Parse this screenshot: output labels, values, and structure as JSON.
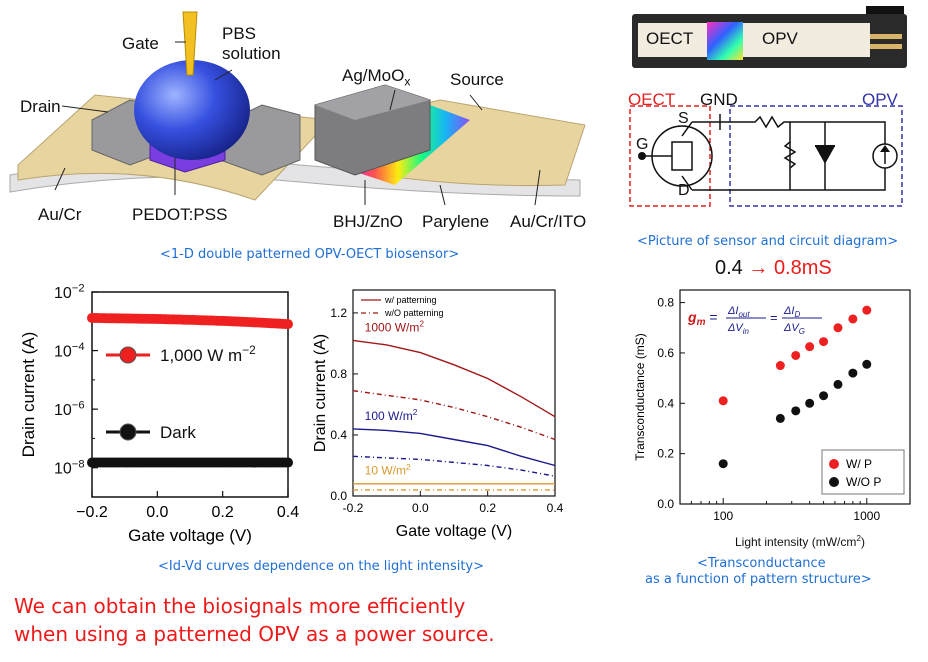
{
  "device": {
    "labels": {
      "gate": "Gate",
      "pbs": "PBS",
      "solution": "solution",
      "drain": "Drain",
      "ag": "Ag/MoO",
      "ag_sub": "x",
      "source": "Source",
      "aucr": "Au/Cr",
      "pedot": "PEDOT:PSS",
      "bhj": "BHJ/ZnO",
      "parylene": "Parylene",
      "aucrito": "Au/Cr/ITO"
    },
    "caption": "<1-D double patterned OPV-OECT biosensor>"
  },
  "photo": {
    "oect": "OECT",
    "opv": "OPV"
  },
  "circuit": {
    "oect_label": "OECT",
    "gnd": "GND",
    "opv_label": "OPV",
    "s": "S",
    "g": "G",
    "d": "D",
    "caption": "<Picture of sensor and circuit diagram>",
    "colors": {
      "oect": "#e62020",
      "opv": "#3333aa"
    }
  },
  "improvement": {
    "from": "0.4",
    "arrow": "→",
    "to": "0.8mS"
  },
  "iv_caption": "<Id-Vd curves dependence on the light intensity>",
  "tc_caption_1": "<Transconductance",
  "tc_caption_2": "as a function of pattern structure>",
  "conclusion": {
    "line1": "We can obtain the biosignals more efficiently",
    "line2": "when using a patterned OPV as a power source."
  },
  "chart_data": [
    {
      "type": "line",
      "xlabel": "Gate voltage (V)",
      "ylabel": "Drain current (A)",
      "yscale": "log",
      "xlim": [
        -0.2,
        0.4
      ],
      "ylim": [
        1e-09,
        0.01
      ],
      "xticks": [
        "−0.2",
        "0.0",
        "0.2",
        "0.4"
      ],
      "yticks": [
        {
          "base": "10",
          "exp": "−2",
          "v": -2
        },
        {
          "base": "10",
          "exp": "−4",
          "v": -4
        },
        {
          "base": "10",
          "exp": "−6",
          "v": -6
        },
        {
          "base": "10",
          "exp": "−8",
          "v": -8
        }
      ],
      "legend_placement": "inside-left",
      "series": [
        {
          "name": "1,000 W m",
          "name_sup": "−2",
          "color": "#ee2020",
          "x": [
            -0.2,
            -0.1,
            0.0,
            0.1,
            0.2,
            0.3,
            0.4
          ],
          "y": [
            0.0013,
            0.00125,
            0.0012,
            0.00112,
            0.00103,
            0.00092,
            0.0008
          ]
        },
        {
          "name": "Dark",
          "color": "#111111",
          "x": [
            -0.2,
            -0.1,
            0.0,
            0.1,
            0.2,
            0.3,
            0.4
          ],
          "y": [
            1.5e-08,
            1.5e-08,
            1.5e-08,
            1.5e-08,
            1.5e-08,
            1.5e-08,
            1.5e-08
          ]
        }
      ]
    },
    {
      "type": "line",
      "xlabel": "Gate voltage (V)",
      "ylabel": "Drain current (A)",
      "xlim": [
        -0.2,
        0.4
      ],
      "ylim": [
        0.0,
        1.35
      ],
      "xticks": [
        "-0.2",
        "0.0",
        "0.2",
        "0.4"
      ],
      "yticks": [
        "0.0",
        "0.4",
        "0.8",
        "1.2"
      ],
      "legend": [
        {
          "name": "w/   patterning",
          "color": "#a01818",
          "dash": ""
        },
        {
          "name": "w/O patterning",
          "color": "#a01818",
          "dash": "5,3,1,3"
        }
      ],
      "annotations": [
        {
          "text": "1000 W/m",
          "sup": "2",
          "color": "#a01818",
          "x": -0.195,
          "y": 1.04
        },
        {
          "text": "100 W/m",
          "sup": "2",
          "color": "#1a1a8c",
          "x": -0.195,
          "y": 0.46
        },
        {
          "text": "10 W/m",
          "sup": "2",
          "color": "#d89a2a",
          "x": -0.195,
          "y": 0.1
        }
      ],
      "series": [
        {
          "name": "1000 W/m2 w/ patterning",
          "color": "#a01818",
          "dash": "",
          "x": [
            -0.2,
            -0.1,
            0.0,
            0.1,
            0.2,
            0.3,
            0.4
          ],
          "y": [
            1.02,
            0.99,
            0.94,
            0.86,
            0.77,
            0.65,
            0.52
          ]
        },
        {
          "name": "1000 W/m2 w/O patterning",
          "color": "#a01818",
          "dash": "5,3,1,3",
          "x": [
            -0.2,
            -0.1,
            0.0,
            0.1,
            0.2,
            0.3,
            0.4
          ],
          "y": [
            0.69,
            0.66,
            0.63,
            0.58,
            0.52,
            0.45,
            0.37
          ]
        },
        {
          "name": "100 W/m2 w/ patterning",
          "color": "#1a1a8c",
          "dash": "",
          "x": [
            -0.2,
            -0.1,
            0.0,
            0.1,
            0.2,
            0.3,
            0.4
          ],
          "y": [
            0.44,
            0.43,
            0.41,
            0.37,
            0.33,
            0.26,
            0.2
          ]
        },
        {
          "name": "100 W/m2 w/O patterning",
          "color": "#1a1a8c",
          "dash": "5,3,1,3",
          "x": [
            -0.2,
            -0.1,
            0.0,
            0.1,
            0.2,
            0.3,
            0.4
          ],
          "y": [
            0.26,
            0.25,
            0.24,
            0.22,
            0.2,
            0.17,
            0.13
          ]
        },
        {
          "name": "10 W/m2 w/ patterning",
          "color": "#d89a2a",
          "dash": "",
          "x": [
            -0.2,
            -0.1,
            0.0,
            0.1,
            0.2,
            0.3,
            0.4
          ],
          "y": [
            0.08,
            0.08,
            0.08,
            0.08,
            0.08,
            0.08,
            0.08
          ]
        },
        {
          "name": "10 W/m2 w/O patterning",
          "color": "#d89a2a",
          "dash": "5,3,1,3",
          "x": [
            -0.2,
            -0.1,
            0.0,
            0.1,
            0.2,
            0.3,
            0.4
          ],
          "y": [
            0.04,
            0.04,
            0.04,
            0.04,
            0.04,
            0.04,
            0.04
          ]
        }
      ]
    },
    {
      "type": "scatter",
      "xlabel": "Light intensity (mW/cm",
      "xlabel_sup": "2",
      "xlabel_tail": ")",
      "ylabel": "Transconductance (mS)",
      "xscale": "log",
      "xlim": [
        50,
        2000
      ],
      "ylim": [
        0.0,
        0.85
      ],
      "xticks": [
        {
          "label": "100",
          "v": 100
        },
        {
          "label": "1000",
          "v": 1000
        }
      ],
      "yticks": [
        "0.0",
        "0.2",
        "0.4",
        "0.6",
        "0.8"
      ],
      "legend_placement": "bottom-right",
      "formula": "g_m = ΔI_out/ΔV_in = ΔI_D/ΔV_G",
      "series": [
        {
          "name": "W/    P",
          "color": "#ee2020",
          "x": [
            100,
            250,
            320,
            400,
            500,
            630,
            800,
            1000
          ],
          "y": [
            0.41,
            0.55,
            0.59,
            0.625,
            0.645,
            0.7,
            0.735,
            0.77
          ]
        },
        {
          "name": "W/O  P",
          "color": "#111111",
          "x": [
            100,
            250,
            320,
            400,
            500,
            630,
            800,
            1000
          ],
          "y": [
            0.16,
            0.34,
            0.37,
            0.4,
            0.43,
            0.475,
            0.52,
            0.555
          ]
        }
      ]
    }
  ]
}
